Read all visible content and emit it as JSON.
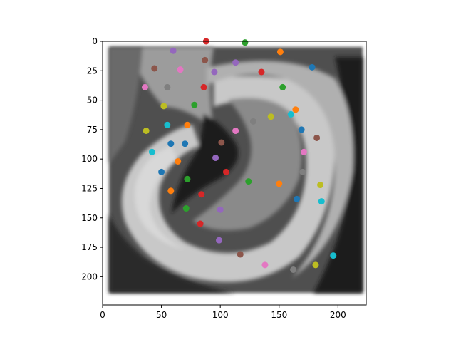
{
  "chart_data": {
    "type": "scatter",
    "title": "",
    "xlabel": "",
    "ylabel": "",
    "xlim": [
      0,
      224
    ],
    "ylim": [
      224,
      0
    ],
    "y_inverted": true,
    "background": "grayscale image of a curved tissue structure",
    "x_ticks": [
      "0",
      "50",
      "100",
      "150",
      "200"
    ],
    "y_ticks": [
      "0",
      "25",
      "50",
      "75",
      "100",
      "125",
      "150",
      "175",
      "200"
    ],
    "x_tick_values": [
      0,
      50,
      100,
      150,
      200
    ],
    "y_tick_values": [
      0,
      25,
      50,
      75,
      100,
      125,
      150,
      175,
      200
    ],
    "points": [
      {
        "x": 88,
        "y": 0,
        "color": "#d62728"
      },
      {
        "x": 121,
        "y": 1,
        "color": "#2ca02c"
      },
      {
        "x": 60,
        "y": 8,
        "color": "#9467bd"
      },
      {
        "x": 151,
        "y": 9,
        "color": "#ff7f0e"
      },
      {
        "x": 87,
        "y": 16,
        "color": "#8c564b"
      },
      {
        "x": 113,
        "y": 18,
        "color": "#9467bd"
      },
      {
        "x": 44,
        "y": 23,
        "color": "#8c564b"
      },
      {
        "x": 66,
        "y": 24,
        "color": "#e377c2"
      },
      {
        "x": 95,
        "y": 26,
        "color": "#9467bd"
      },
      {
        "x": 135,
        "y": 26,
        "color": "#d62728"
      },
      {
        "x": 178,
        "y": 22,
        "color": "#1f77b4"
      },
      {
        "x": 36,
        "y": 39,
        "color": "#e377c2"
      },
      {
        "x": 55,
        "y": 39,
        "color": "#7f7f7f"
      },
      {
        "x": 86,
        "y": 39,
        "color": "#d62728"
      },
      {
        "x": 153,
        "y": 39,
        "color": "#2ca02c"
      },
      {
        "x": 52,
        "y": 55,
        "color": "#bcbd22"
      },
      {
        "x": 78,
        "y": 54,
        "color": "#2ca02c"
      },
      {
        "x": 164,
        "y": 58,
        "color": "#ff7f0e"
      },
      {
        "x": 160,
        "y": 62,
        "color": "#17becf"
      },
      {
        "x": 143,
        "y": 64,
        "color": "#bcbd22"
      },
      {
        "x": 128,
        "y": 68,
        "color": "#7f7f7f"
      },
      {
        "x": 55,
        "y": 71,
        "color": "#17becf"
      },
      {
        "x": 72,
        "y": 71,
        "color": "#ff7f0e"
      },
      {
        "x": 37,
        "y": 76,
        "color": "#bcbd22"
      },
      {
        "x": 113,
        "y": 76,
        "color": "#e377c2"
      },
      {
        "x": 169,
        "y": 75,
        "color": "#1f77b4"
      },
      {
        "x": 182,
        "y": 82,
        "color": "#8c564b"
      },
      {
        "x": 58,
        "y": 87,
        "color": "#1f77b4"
      },
      {
        "x": 70,
        "y": 87,
        "color": "#1f77b4"
      },
      {
        "x": 101,
        "y": 86,
        "color": "#8c564b"
      },
      {
        "x": 42,
        "y": 94,
        "color": "#17becf"
      },
      {
        "x": 171,
        "y": 94,
        "color": "#e377c2"
      },
      {
        "x": 96,
        "y": 99,
        "color": "#9467bd"
      },
      {
        "x": 64,
        "y": 102,
        "color": "#ff7f0e"
      },
      {
        "x": 50,
        "y": 111,
        "color": "#1f77b4"
      },
      {
        "x": 105,
        "y": 111,
        "color": "#d62728"
      },
      {
        "x": 170,
        "y": 111,
        "color": "#7f7f7f"
      },
      {
        "x": 72,
        "y": 117,
        "color": "#2ca02c"
      },
      {
        "x": 124,
        "y": 119,
        "color": "#2ca02c"
      },
      {
        "x": 150,
        "y": 121,
        "color": "#ff7f0e"
      },
      {
        "x": 185,
        "y": 122,
        "color": "#bcbd22"
      },
      {
        "x": 58,
        "y": 127,
        "color": "#ff7f0e"
      },
      {
        "x": 84,
        "y": 130,
        "color": "#d62728"
      },
      {
        "x": 165,
        "y": 134,
        "color": "#1f77b4"
      },
      {
        "x": 186,
        "y": 136,
        "color": "#17becf"
      },
      {
        "x": 71,
        "y": 142,
        "color": "#2ca02c"
      },
      {
        "x": 100,
        "y": 143,
        "color": "#9467bd"
      },
      {
        "x": 83,
        "y": 155,
        "color": "#d62728"
      },
      {
        "x": 99,
        "y": 169,
        "color": "#9467bd"
      },
      {
        "x": 117,
        "y": 181,
        "color": "#8c564b"
      },
      {
        "x": 196,
        "y": 182,
        "color": "#17becf"
      },
      {
        "x": 138,
        "y": 190,
        "color": "#e377c2"
      },
      {
        "x": 181,
        "y": 190,
        "color": "#bcbd22"
      },
      {
        "x": 162,
        "y": 194,
        "color": "#7f7f7f"
      }
    ]
  }
}
